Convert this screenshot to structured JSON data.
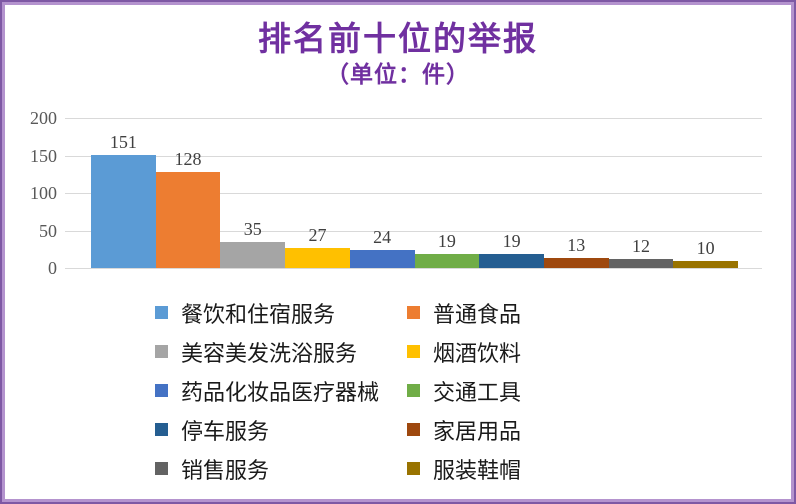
{
  "window": {
    "background": "#FFFFFF",
    "border_outer_color": "#7E58A4",
    "border_inner_color": "#B493CE"
  },
  "chart_data": {
    "type": "bar",
    "title": "排名前十位的举报",
    "subtitle": "（单位：件）",
    "title_color": "#7030A0",
    "categories": [
      "餐饮和住宿服务",
      "普通食品",
      "美容美发洗浴服务",
      "烟酒饮料",
      "药品化妆品医疗器械",
      "交通工具",
      "停车服务",
      "家居用品",
      "销售服务",
      "服装鞋帽"
    ],
    "values": [
      151,
      128,
      35,
      27,
      24,
      19,
      19,
      13,
      12,
      10
    ],
    "colors": [
      "#5B9BD5",
      "#ED7D31",
      "#A5A5A5",
      "#FFC000",
      "#4472C4",
      "#70AD47",
      "#255E91",
      "#9E480E",
      "#636363",
      "#997300"
    ],
    "ylim": [
      0,
      200
    ],
    "yticks": [
      200,
      150,
      100,
      50,
      0
    ],
    "grid": true,
    "gridline_color": "#D9D9D9",
    "axis_label_color": "#595959",
    "data_label_color": "#404040",
    "data_labels": true,
    "legend_position": "bottom",
    "legend_columns": 2
  }
}
